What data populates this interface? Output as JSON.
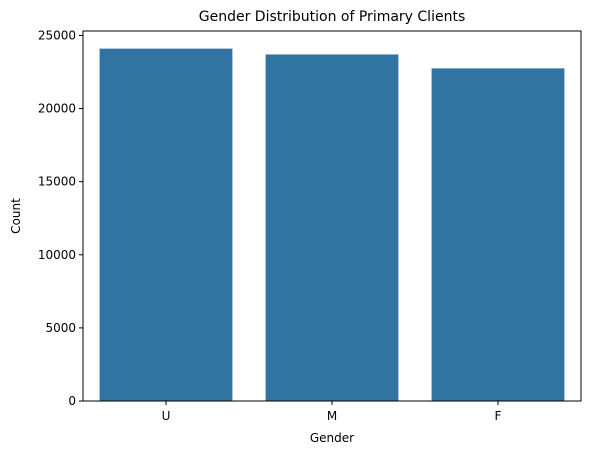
{
  "chart_data": {
    "type": "bar",
    "title": "Gender Distribution of Primary Clients",
    "xlabel": "Gender",
    "ylabel": "Count",
    "categories": [
      "U",
      "M",
      "F"
    ],
    "values": [
      24100,
      23700,
      22750
    ],
    "ylim": [
      0,
      25305
    ],
    "yticks": [
      0,
      5000,
      10000,
      15000,
      20000,
      25000
    ],
    "ytick_labels": [
      "0",
      "5000",
      "10000",
      "15000",
      "20000",
      "25000"
    ],
    "grid": false,
    "legend": "none",
    "bar_color": "#3274a1"
  }
}
